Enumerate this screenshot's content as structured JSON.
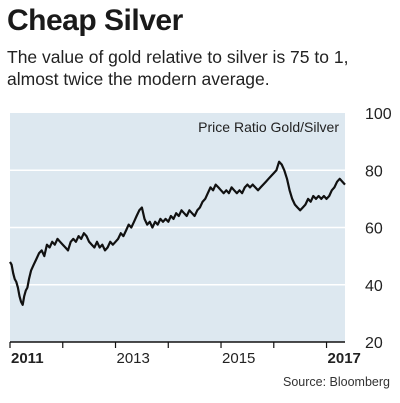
{
  "header": {
    "title": "Cheap Silver",
    "subtitle": "The value of gold relative to silver is 75 to 1, almost twice the modern average."
  },
  "source": "Source: Bloomberg",
  "colors": {
    "plot_bg": "#dde8f0",
    "line": "#111111",
    "grid": "#ffffff",
    "axis": "#111111"
  },
  "chart_data": {
    "type": "line",
    "annotation": "Price Ratio Gold/Silver",
    "xlim": [
      2011.0,
      2017.35
    ],
    "ylim": [
      20,
      100
    ],
    "yticks": [
      20,
      40,
      60,
      80,
      100
    ],
    "xticks": [
      {
        "value": 2011,
        "label": "2011",
        "bold": true
      },
      {
        "value": 2013,
        "label": "2013",
        "bold": false
      },
      {
        "value": 2015,
        "label": "2015",
        "bold": false
      },
      {
        "value": 2017,
        "label": "2017",
        "bold": true
      }
    ],
    "grid": true,
    "series": [
      {
        "points": [
          [
            2011.0,
            48
          ],
          [
            2011.03,
            47
          ],
          [
            2011.06,
            44
          ],
          [
            2011.09,
            42
          ],
          [
            2011.12,
            41
          ],
          [
            2011.15,
            39
          ],
          [
            2011.18,
            36
          ],
          [
            2011.21,
            34
          ],
          [
            2011.24,
            33
          ],
          [
            2011.27,
            36
          ],
          [
            2011.3,
            38
          ],
          [
            2011.33,
            39
          ],
          [
            2011.36,
            42
          ],
          [
            2011.4,
            45
          ],
          [
            2011.45,
            47
          ],
          [
            2011.5,
            49
          ],
          [
            2011.55,
            51
          ],
          [
            2011.6,
            52
          ],
          [
            2011.65,
            50
          ],
          [
            2011.7,
            54
          ],
          [
            2011.75,
            53
          ],
          [
            2011.8,
            55
          ],
          [
            2011.85,
            54
          ],
          [
            2011.9,
            56
          ],
          [
            2011.95,
            55
          ],
          [
            2012.0,
            54
          ],
          [
            2012.05,
            53
          ],
          [
            2012.1,
            52
          ],
          [
            2012.15,
            55
          ],
          [
            2012.2,
            56
          ],
          [
            2012.25,
            55
          ],
          [
            2012.3,
            57
          ],
          [
            2012.35,
            56
          ],
          [
            2012.4,
            58
          ],
          [
            2012.45,
            57
          ],
          [
            2012.5,
            55
          ],
          [
            2012.55,
            54
          ],
          [
            2012.6,
            53
          ],
          [
            2012.65,
            55
          ],
          [
            2012.7,
            53
          ],
          [
            2012.75,
            54
          ],
          [
            2012.8,
            52
          ],
          [
            2012.85,
            53
          ],
          [
            2012.9,
            55
          ],
          [
            2012.95,
            54
          ],
          [
            2013.0,
            55
          ],
          [
            2013.05,
            56
          ],
          [
            2013.1,
            58
          ],
          [
            2013.15,
            57
          ],
          [
            2013.2,
            59
          ],
          [
            2013.25,
            61
          ],
          [
            2013.3,
            60
          ],
          [
            2013.35,
            62
          ],
          [
            2013.4,
            64
          ],
          [
            2013.45,
            66
          ],
          [
            2013.5,
            67
          ],
          [
            2013.55,
            63
          ],
          [
            2013.6,
            61
          ],
          [
            2013.65,
            62
          ],
          [
            2013.7,
            60
          ],
          [
            2013.75,
            62
          ],
          [
            2013.8,
            61
          ],
          [
            2013.85,
            63
          ],
          [
            2013.9,
            62
          ],
          [
            2013.95,
            63
          ],
          [
            2014.0,
            62
          ],
          [
            2014.05,
            64
          ],
          [
            2014.1,
            63
          ],
          [
            2014.15,
            65
          ],
          [
            2014.2,
            64
          ],
          [
            2014.25,
            66
          ],
          [
            2014.3,
            65
          ],
          [
            2014.35,
            64
          ],
          [
            2014.4,
            66
          ],
          [
            2014.45,
            65
          ],
          [
            2014.5,
            64
          ],
          [
            2014.55,
            66
          ],
          [
            2014.6,
            67
          ],
          [
            2014.65,
            69
          ],
          [
            2014.7,
            70
          ],
          [
            2014.75,
            72
          ],
          [
            2014.8,
            74
          ],
          [
            2014.85,
            73
          ],
          [
            2014.9,
            75
          ],
          [
            2014.95,
            74
          ],
          [
            2015.0,
            73
          ],
          [
            2015.05,
            72
          ],
          [
            2015.1,
            73
          ],
          [
            2015.15,
            72
          ],
          [
            2015.2,
            74
          ],
          [
            2015.25,
            73
          ],
          [
            2015.3,
            72
          ],
          [
            2015.35,
            73
          ],
          [
            2015.4,
            72
          ],
          [
            2015.45,
            74
          ],
          [
            2015.5,
            75
          ],
          [
            2015.55,
            74
          ],
          [
            2015.6,
            75
          ],
          [
            2015.65,
            74
          ],
          [
            2015.7,
            73
          ],
          [
            2015.75,
            74
          ],
          [
            2015.8,
            75
          ],
          [
            2015.85,
            76
          ],
          [
            2015.9,
            77
          ],
          [
            2015.95,
            78
          ],
          [
            2016.0,
            79
          ],
          [
            2016.05,
            80
          ],
          [
            2016.1,
            83
          ],
          [
            2016.15,
            82
          ],
          [
            2016.2,
            80
          ],
          [
            2016.25,
            77
          ],
          [
            2016.3,
            73
          ],
          [
            2016.35,
            70
          ],
          [
            2016.4,
            68
          ],
          [
            2016.45,
            67
          ],
          [
            2016.5,
            66
          ],
          [
            2016.55,
            67
          ],
          [
            2016.6,
            68
          ],
          [
            2016.65,
            70
          ],
          [
            2016.7,
            69
          ],
          [
            2016.75,
            71
          ],
          [
            2016.8,
            70
          ],
          [
            2016.85,
            71
          ],
          [
            2016.9,
            70
          ],
          [
            2016.95,
            71
          ],
          [
            2017.0,
            70
          ],
          [
            2017.05,
            71
          ],
          [
            2017.1,
            73
          ],
          [
            2017.15,
            74
          ],
          [
            2017.2,
            76
          ],
          [
            2017.25,
            77
          ],
          [
            2017.3,
            76
          ],
          [
            2017.35,
            75
          ]
        ]
      }
    ]
  }
}
